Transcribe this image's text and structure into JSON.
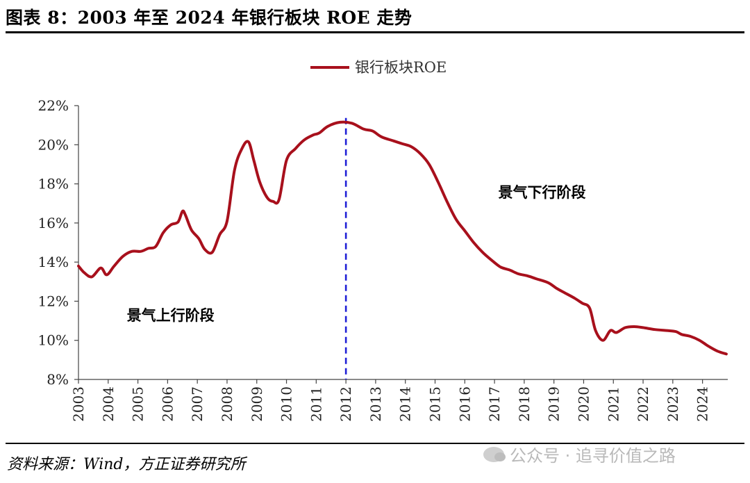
{
  "header": {
    "title": "图表 8：2003 年至 2024 年银行板块 ROE 走势"
  },
  "footer": {
    "source": "资料来源：Wind，方正证券研究所",
    "watermark": "公众号 · 追寻价值之路",
    "watermark_icon": "wechat-icon"
  },
  "chart_data": {
    "type": "line",
    "title": "",
    "xlabel": "",
    "ylabel": "",
    "ylim": [
      8,
      22
    ],
    "y_ticks": [
      8,
      10,
      12,
      14,
      16,
      18,
      20,
      22
    ],
    "y_tick_labels": [
      "8%",
      "10%",
      "12%",
      "14%",
      "16%",
      "18%",
      "20%",
      "22%"
    ],
    "xlim": [
      2003,
      2024.85
    ],
    "x_ticks": [
      2003,
      2004,
      2005,
      2006,
      2007,
      2008,
      2009,
      2010,
      2011,
      2012,
      2013,
      2014,
      2015,
      2016,
      2017,
      2018,
      2019,
      2020,
      2021,
      2022,
      2023,
      2024
    ],
    "x_tick_labels": [
      "2003",
      "2004",
      "2005",
      "2006",
      "2007",
      "2008",
      "2009",
      "2010",
      "2011",
      "2012",
      "2013",
      "2014",
      "2015",
      "2016",
      "2017",
      "2018",
      "2019",
      "2020",
      "2021",
      "2022",
      "2023",
      "2024"
    ],
    "grid": false,
    "legend_position": "top-center",
    "series": [
      {
        "name": "银行板块ROE",
        "color": "#a8101c",
        "points": [
          [
            2003.0,
            13.8
          ],
          [
            2003.2,
            13.45
          ],
          [
            2003.45,
            13.25
          ],
          [
            2003.75,
            13.7
          ],
          [
            2003.95,
            13.35
          ],
          [
            2004.2,
            13.8
          ],
          [
            2004.5,
            14.3
          ],
          [
            2004.8,
            14.55
          ],
          [
            2005.1,
            14.55
          ],
          [
            2005.35,
            14.7
          ],
          [
            2005.6,
            14.8
          ],
          [
            2005.85,
            15.5
          ],
          [
            2006.1,
            15.9
          ],
          [
            2006.35,
            16.05
          ],
          [
            2006.5,
            16.6
          ],
          [
            2006.6,
            16.4
          ],
          [
            2006.8,
            15.65
          ],
          [
            2007.05,
            15.2
          ],
          [
            2007.25,
            14.65
          ],
          [
            2007.5,
            14.5
          ],
          [
            2007.75,
            15.4
          ],
          [
            2008.0,
            16.1
          ],
          [
            2008.25,
            18.7
          ],
          [
            2008.5,
            19.8
          ],
          [
            2008.72,
            20.15
          ],
          [
            2008.9,
            19.2
          ],
          [
            2009.1,
            18.1
          ],
          [
            2009.35,
            17.3
          ],
          [
            2009.55,
            17.1
          ],
          [
            2009.75,
            17.2
          ],
          [
            2010.0,
            19.2
          ],
          [
            2010.3,
            19.8
          ],
          [
            2010.6,
            20.25
          ],
          [
            2010.9,
            20.5
          ],
          [
            2011.1,
            20.6
          ],
          [
            2011.4,
            20.95
          ],
          [
            2011.8,
            21.15
          ],
          [
            2012.2,
            21.1
          ],
          [
            2012.6,
            20.8
          ],
          [
            2012.9,
            20.7
          ],
          [
            2013.2,
            20.4
          ],
          [
            2013.6,
            20.2
          ],
          [
            2013.9,
            20.05
          ],
          [
            2014.2,
            19.9
          ],
          [
            2014.5,
            19.55
          ],
          [
            2014.8,
            19.0
          ],
          [
            2015.1,
            18.1
          ],
          [
            2015.4,
            17.1
          ],
          [
            2015.7,
            16.2
          ],
          [
            2016.0,
            15.6
          ],
          [
            2016.3,
            15.0
          ],
          [
            2016.6,
            14.5
          ],
          [
            2016.9,
            14.1
          ],
          [
            2017.2,
            13.75
          ],
          [
            2017.5,
            13.6
          ],
          [
            2017.8,
            13.4
          ],
          [
            2018.1,
            13.3
          ],
          [
            2018.4,
            13.15
          ],
          [
            2018.8,
            12.95
          ],
          [
            2019.1,
            12.65
          ],
          [
            2019.4,
            12.4
          ],
          [
            2019.7,
            12.15
          ],
          [
            2019.95,
            11.9
          ],
          [
            2020.2,
            11.65
          ],
          [
            2020.4,
            10.5
          ],
          [
            2020.65,
            10.0
          ],
          [
            2020.9,
            10.5
          ],
          [
            2021.1,
            10.4
          ],
          [
            2021.4,
            10.65
          ],
          [
            2021.7,
            10.7
          ],
          [
            2022.0,
            10.65
          ],
          [
            2022.4,
            10.55
          ],
          [
            2022.8,
            10.5
          ],
          [
            2023.1,
            10.45
          ],
          [
            2023.3,
            10.3
          ],
          [
            2023.6,
            10.2
          ],
          [
            2023.9,
            10.0
          ],
          [
            2024.2,
            9.7
          ],
          [
            2024.5,
            9.45
          ],
          [
            2024.8,
            9.3
          ]
        ]
      }
    ],
    "reference_lines": [
      {
        "orientation": "vertical",
        "x": 2012.0,
        "style": "dashed",
        "color": "#1f1fd6"
      }
    ],
    "annotations": [
      {
        "id": "up",
        "text": "景气上行阶段",
        "x": 2006.1,
        "y": 11.3
      },
      {
        "id": "down",
        "text": "景气下行阶段",
        "x": 2018.6,
        "y": 17.6
      }
    ]
  }
}
